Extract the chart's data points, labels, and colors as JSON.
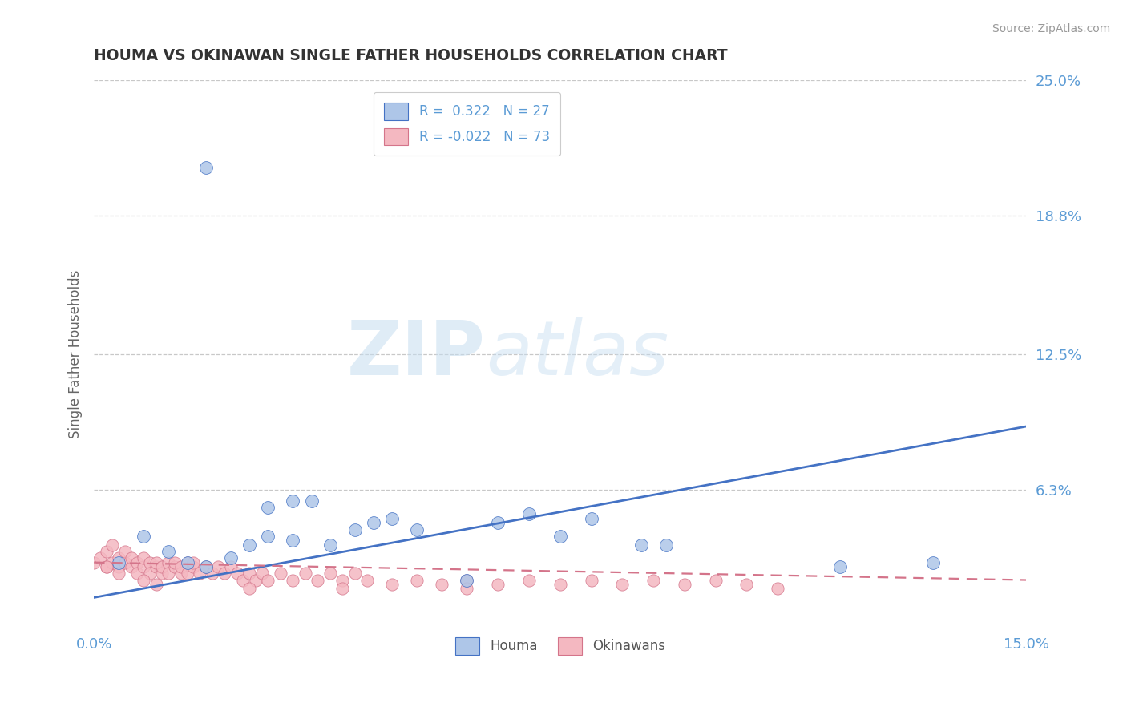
{
  "title": "HOUMA VS OKINAWAN SINGLE FATHER HOUSEHOLDS CORRELATION CHART",
  "source": "Source: ZipAtlas.com",
  "ylabel": "Single Father Households",
  "xlim": [
    0.0,
    0.15
  ],
  "ylim": [
    0.0,
    0.25
  ],
  "ytick_vals": [
    0.0,
    0.063,
    0.125,
    0.188,
    0.25
  ],
  "ytick_labels": [
    "",
    "6.3%",
    "12.5%",
    "18.8%",
    "25.0%"
  ],
  "watermark_zip": "ZIP",
  "watermark_atlas": "atlas",
  "legend_entry1": "R =  0.322   N = 27",
  "legend_entry2": "R = -0.022   N = 73",
  "houma_color": "#aec6e8",
  "okinawan_color": "#f4b8c1",
  "houma_line_color": "#4472c4",
  "okinawan_line_color": "#d4748a",
  "title_color": "#333333",
  "axis_color": "#5b9bd5",
  "grid_color": "#c8c8c8",
  "houma_x": [
    0.004,
    0.008,
    0.012,
    0.015,
    0.018,
    0.022,
    0.025,
    0.028,
    0.032,
    0.038,
    0.042,
    0.045,
    0.048,
    0.052,
    0.035,
    0.065,
    0.07,
    0.075,
    0.08,
    0.088,
    0.092,
    0.028,
    0.032,
    0.12,
    0.135,
    0.06,
    0.018
  ],
  "houma_y": [
    0.03,
    0.042,
    0.035,
    0.03,
    0.028,
    0.032,
    0.038,
    0.042,
    0.04,
    0.038,
    0.045,
    0.048,
    0.05,
    0.045,
    0.058,
    0.048,
    0.052,
    0.042,
    0.05,
    0.038,
    0.038,
    0.055,
    0.058,
    0.028,
    0.03,
    0.022,
    0.21
  ],
  "okinawan_x": [
    0.0,
    0.001,
    0.002,
    0.002,
    0.003,
    0.003,
    0.004,
    0.004,
    0.005,
    0.005,
    0.006,
    0.006,
    0.007,
    0.007,
    0.008,
    0.008,
    0.009,
    0.009,
    0.01,
    0.01,
    0.011,
    0.011,
    0.012,
    0.012,
    0.013,
    0.013,
    0.014,
    0.014,
    0.015,
    0.015,
    0.016,
    0.016,
    0.017,
    0.018,
    0.019,
    0.02,
    0.021,
    0.022,
    0.023,
    0.024,
    0.025,
    0.026,
    0.027,
    0.028,
    0.03,
    0.032,
    0.034,
    0.036,
    0.038,
    0.04,
    0.042,
    0.044,
    0.048,
    0.052,
    0.056,
    0.06,
    0.065,
    0.07,
    0.075,
    0.08,
    0.085,
    0.09,
    0.095,
    0.1,
    0.105,
    0.11,
    0.06,
    0.04,
    0.025,
    0.01,
    0.008,
    0.004,
    0.002
  ],
  "okinawan_y": [
    0.03,
    0.032,
    0.028,
    0.035,
    0.03,
    0.038,
    0.028,
    0.032,
    0.03,
    0.035,
    0.028,
    0.032,
    0.03,
    0.025,
    0.028,
    0.032,
    0.03,
    0.025,
    0.028,
    0.03,
    0.025,
    0.028,
    0.03,
    0.025,
    0.028,
    0.03,
    0.025,
    0.028,
    0.03,
    0.025,
    0.028,
    0.03,
    0.025,
    0.028,
    0.025,
    0.028,
    0.025,
    0.028,
    0.025,
    0.022,
    0.025,
    0.022,
    0.025,
    0.022,
    0.025,
    0.022,
    0.025,
    0.022,
    0.025,
    0.022,
    0.025,
    0.022,
    0.02,
    0.022,
    0.02,
    0.022,
    0.02,
    0.022,
    0.02,
    0.022,
    0.02,
    0.022,
    0.02,
    0.022,
    0.02,
    0.018,
    0.018,
    0.018,
    0.018,
    0.02,
    0.022,
    0.025,
    0.028
  ],
  "houma_line_x": [
    0.0,
    0.15
  ],
  "houma_line_y": [
    0.014,
    0.092
  ],
  "okinawan_line_x": [
    0.0,
    0.15
  ],
  "okinawan_line_y": [
    0.03,
    0.022
  ]
}
